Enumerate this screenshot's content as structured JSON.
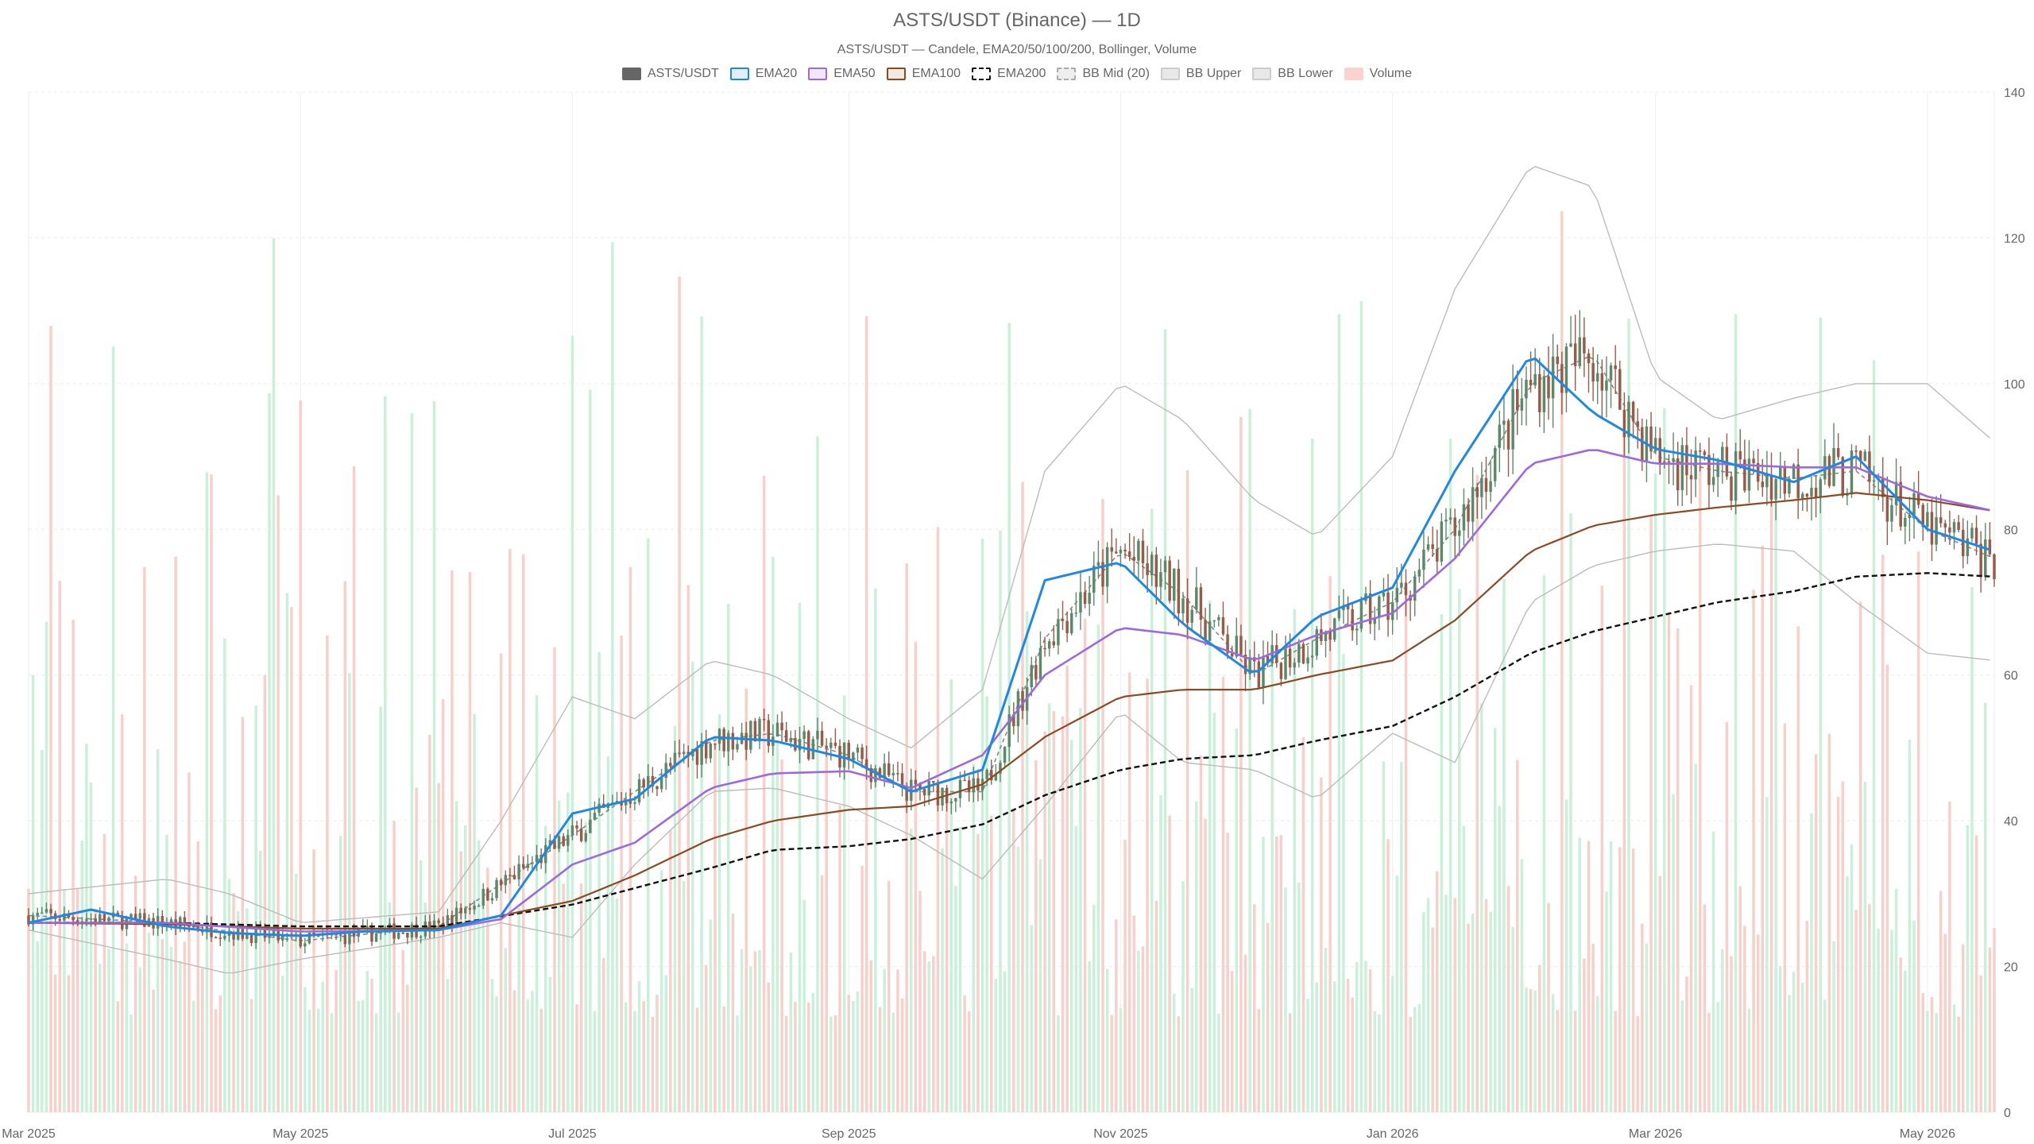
{
  "chart_data": {
    "type": "candlestick",
    "title": "ASTS/USDT (Binance) — 1D",
    "subtitle": "ASTS/USDT — Candele, EMA20/50/100/200, Bollinger, Volume",
    "legend_placement": "top-center",
    "grid": true,
    "x_tick_labels": [
      "Mar 2025",
      "May 2025",
      "Jul 2025",
      "Sep 2025",
      "Nov 2025",
      "Jan 2026",
      "Mar 2026",
      "May 2026"
    ],
    "x_range": [
      "2025-03-01",
      "2026-05-16"
    ],
    "y_axis": {
      "position": "right",
      "ylim": [
        0,
        140
      ],
      "ticks": [
        0,
        20,
        40,
        60,
        80,
        100,
        120,
        140
      ]
    },
    "series": [
      {
        "name": "ASTS/USDT",
        "kind": "candles",
        "up_color": "#5a8a6a",
        "down_color": "#9a5a48"
      },
      {
        "name": "EMA20",
        "kind": "line",
        "color": "#1e88e5",
        "points": [
          [
            "2025-03-01",
            26
          ],
          [
            "2025-03-15",
            27.8
          ],
          [
            "2025-04-01",
            25.5
          ],
          [
            "2025-04-15",
            24.6
          ],
          [
            "2025-05-01",
            24.2
          ],
          [
            "2025-05-15",
            24.8
          ],
          [
            "2025-06-01",
            25
          ],
          [
            "2025-06-15",
            27
          ],
          [
            "2025-07-01",
            41
          ],
          [
            "2025-07-15",
            43
          ],
          [
            "2025-08-01",
            51.5
          ],
          [
            "2025-08-15",
            51
          ],
          [
            "2025-09-01",
            48.5
          ],
          [
            "2025-09-15",
            44
          ],
          [
            "2025-10-01",
            47
          ],
          [
            "2025-10-15",
            73
          ],
          [
            "2025-11-01",
            75.5
          ],
          [
            "2025-11-15",
            67
          ],
          [
            "2025-12-01",
            60
          ],
          [
            "2025-12-15",
            68
          ],
          [
            "2026-01-01",
            72
          ],
          [
            "2026-01-15",
            88
          ],
          [
            "2026-02-01",
            104
          ],
          [
            "2026-02-15",
            96
          ],
          [
            "2026-03-01",
            91
          ],
          [
            "2026-03-15",
            89.5
          ],
          [
            "2026-04-01",
            86.5
          ],
          [
            "2026-04-15",
            90
          ],
          [
            "2026-05-01",
            80
          ],
          [
            "2026-05-16",
            77
          ]
        ]
      },
      {
        "name": "EMA50",
        "kind": "line",
        "color": "#9c6ade",
        "points": [
          [
            "2025-03-01",
            26
          ],
          [
            "2025-04-01",
            26
          ],
          [
            "2025-05-01",
            24.8
          ],
          [
            "2025-06-01",
            25
          ],
          [
            "2025-06-15",
            26.5
          ],
          [
            "2025-07-01",
            34
          ],
          [
            "2025-07-15",
            37
          ],
          [
            "2025-08-01",
            44.5
          ],
          [
            "2025-08-15",
            46.5
          ],
          [
            "2025-09-01",
            46.8
          ],
          [
            "2025-09-15",
            44.5
          ],
          [
            "2025-10-01",
            49
          ],
          [
            "2025-10-15",
            60
          ],
          [
            "2025-11-01",
            66.5
          ],
          [
            "2025-11-15",
            65.5
          ],
          [
            "2025-12-01",
            62
          ],
          [
            "2025-12-15",
            65.5
          ],
          [
            "2026-01-01",
            68.5
          ],
          [
            "2026-01-15",
            76
          ],
          [
            "2026-02-01",
            89
          ],
          [
            "2026-02-15",
            91
          ],
          [
            "2026-03-01",
            89
          ],
          [
            "2026-03-15",
            89
          ],
          [
            "2026-04-01",
            88.5
          ],
          [
            "2026-04-15",
            88.5
          ],
          [
            "2026-05-01",
            84.5
          ],
          [
            "2026-05-16",
            82.5
          ]
        ]
      },
      {
        "name": "EMA100",
        "kind": "line",
        "color": "#8b4a24",
        "points": [
          [
            "2025-03-01",
            26
          ],
          [
            "2025-04-01",
            25.8
          ],
          [
            "2025-05-01",
            25.2
          ],
          [
            "2025-06-01",
            25.2
          ],
          [
            "2025-07-01",
            29
          ],
          [
            "2025-07-15",
            32.5
          ],
          [
            "2025-08-01",
            37.5
          ],
          [
            "2025-08-15",
            40
          ],
          [
            "2025-09-01",
            41.5
          ],
          [
            "2025-09-15",
            42
          ],
          [
            "2025-10-01",
            45
          ],
          [
            "2025-10-15",
            51.5
          ],
          [
            "2025-11-01",
            57
          ],
          [
            "2025-11-15",
            58
          ],
          [
            "2025-12-01",
            58
          ],
          [
            "2025-12-15",
            60
          ],
          [
            "2026-01-01",
            62
          ],
          [
            "2026-01-15",
            67.5
          ],
          [
            "2026-02-01",
            77
          ],
          [
            "2026-02-15",
            80.5
          ],
          [
            "2026-03-01",
            82
          ],
          [
            "2026-03-15",
            83
          ],
          [
            "2026-04-01",
            84
          ],
          [
            "2026-04-15",
            85
          ],
          [
            "2026-05-01",
            84
          ],
          [
            "2026-05-16",
            82.5
          ]
        ]
      },
      {
        "name": "EMA200",
        "kind": "line",
        "color": "#111111",
        "dashed": true,
        "points": [
          [
            "2025-03-01",
            26
          ],
          [
            "2025-04-01",
            26
          ],
          [
            "2025-05-01",
            25.5
          ],
          [
            "2025-06-01",
            25.5
          ],
          [
            "2025-07-01",
            28.5
          ],
          [
            "2025-08-01",
            33.5
          ],
          [
            "2025-08-15",
            36
          ],
          [
            "2025-09-01",
            36.5
          ],
          [
            "2025-09-15",
            37.5
          ],
          [
            "2025-10-01",
            39.5
          ],
          [
            "2025-10-15",
            43.5
          ],
          [
            "2025-11-01",
            47
          ],
          [
            "2025-11-15",
            48.5
          ],
          [
            "2025-12-01",
            49
          ],
          [
            "2025-12-15",
            51
          ],
          [
            "2026-01-01",
            53
          ],
          [
            "2026-01-15",
            57
          ],
          [
            "2026-02-01",
            63
          ],
          [
            "2026-02-15",
            66
          ],
          [
            "2026-03-01",
            68
          ],
          [
            "2026-03-15",
            70
          ],
          [
            "2026-04-01",
            71.5
          ],
          [
            "2026-04-15",
            73.5
          ],
          [
            "2026-05-01",
            74
          ],
          [
            "2026-05-16",
            73.5
          ]
        ]
      },
      {
        "name": "BB Mid (20)",
        "kind": "line",
        "color": "#888888",
        "dashed": true,
        "points": [
          [
            "2025-03-01",
            27
          ],
          [
            "2025-04-01",
            26
          ],
          [
            "2025-05-01",
            23.5
          ],
          [
            "2025-06-01",
            25.5
          ],
          [
            "2025-07-01",
            38
          ],
          [
            "2025-07-15",
            44
          ],
          [
            "2025-08-01",
            51
          ],
          [
            "2025-08-15",
            52
          ],
          [
            "2025-09-01",
            49
          ],
          [
            "2025-09-15",
            44
          ],
          [
            "2025-10-01",
            44
          ],
          [
            "2025-10-15",
            65
          ],
          [
            "2025-11-01",
            77
          ],
          [
            "2025-11-15",
            71
          ],
          [
            "2025-12-01",
            60
          ],
          [
            "2025-12-15",
            65
          ],
          [
            "2026-01-01",
            70
          ],
          [
            "2026-01-15",
            80
          ],
          [
            "2026-02-01",
            100
          ],
          [
            "2026-02-15",
            104
          ],
          [
            "2026-03-01",
            90
          ],
          [
            "2026-03-15",
            88
          ],
          [
            "2026-04-01",
            87
          ],
          [
            "2026-04-15",
            88
          ],
          [
            "2026-05-01",
            80
          ],
          [
            "2026-05-16",
            76
          ]
        ]
      },
      {
        "name": "BB Upper",
        "kind": "line",
        "color": "#bbbbbb",
        "points": [
          [
            "2025-03-01",
            30
          ],
          [
            "2025-04-01",
            32
          ],
          [
            "2025-04-15",
            30
          ],
          [
            "2025-05-01",
            26
          ],
          [
            "2025-06-01",
            27.5
          ],
          [
            "2025-06-15",
            40
          ],
          [
            "2025-07-01",
            57
          ],
          [
            "2025-07-15",
            54
          ],
          [
            "2025-08-01",
            62
          ],
          [
            "2025-08-15",
            60
          ],
          [
            "2025-09-01",
            54
          ],
          [
            "2025-09-15",
            50
          ],
          [
            "2025-10-01",
            58
          ],
          [
            "2025-10-15",
            88
          ],
          [
            "2025-11-01",
            100
          ],
          [
            "2025-11-15",
            95
          ],
          [
            "2025-12-01",
            84
          ],
          [
            "2025-12-15",
            79
          ],
          [
            "2026-01-01",
            90
          ],
          [
            "2026-01-15",
            113
          ],
          [
            "2026-02-01",
            130
          ],
          [
            "2026-02-15",
            127
          ],
          [
            "2026-03-01",
            101
          ],
          [
            "2026-03-15",
            95
          ],
          [
            "2026-04-01",
            98
          ],
          [
            "2026-04-15",
            100
          ],
          [
            "2026-05-01",
            100
          ],
          [
            "2026-05-16",
            92
          ]
        ]
      },
      {
        "name": "BB Lower",
        "kind": "line",
        "color": "#bbbbbb",
        "points": [
          [
            "2025-03-01",
            25
          ],
          [
            "2025-04-01",
            21
          ],
          [
            "2025-04-15",
            19
          ],
          [
            "2025-05-01",
            21
          ],
          [
            "2025-06-01",
            24
          ],
          [
            "2025-06-15",
            26
          ],
          [
            "2025-07-01",
            24
          ],
          [
            "2025-07-15",
            34
          ],
          [
            "2025-08-01",
            44
          ],
          [
            "2025-08-15",
            44.5
          ],
          [
            "2025-09-01",
            42
          ],
          [
            "2025-09-15",
            38
          ],
          [
            "2025-10-01",
            32
          ],
          [
            "2025-10-15",
            42
          ],
          [
            "2025-11-01",
            55
          ],
          [
            "2025-11-15",
            48
          ],
          [
            "2025-12-01",
            47
          ],
          [
            "2025-12-15",
            43
          ],
          [
            "2026-01-01",
            52
          ],
          [
            "2026-01-15",
            48
          ],
          [
            "2026-02-01",
            70
          ],
          [
            "2026-02-15",
            75
          ],
          [
            "2026-03-01",
            77
          ],
          [
            "2026-03-15",
            78
          ],
          [
            "2026-04-01",
            77
          ],
          [
            "2026-04-15",
            70
          ],
          [
            "2026-05-01",
            63
          ],
          [
            "2026-05-16",
            62
          ]
        ]
      },
      {
        "name": "Volume",
        "kind": "bars",
        "up_color": "#c9f0d9",
        "down_color": "#f9cfc9"
      }
    ],
    "legend": [
      {
        "label": "ASTS/USDT",
        "fill": "#666666",
        "stroke": "#666666",
        "dashed": false
      },
      {
        "label": "EMA20",
        "fill": "#e3f0fb",
        "stroke": "#1e88e5",
        "dashed": false
      },
      {
        "label": "EMA50",
        "fill": "#f0e8fa",
        "stroke": "#9c6ade",
        "dashed": false
      },
      {
        "label": "EMA100",
        "fill": "#f3e9e2",
        "stroke": "#8b4a24",
        "dashed": false
      },
      {
        "label": "EMA200",
        "fill": "#ffffff",
        "stroke": "#111111",
        "dashed": true
      },
      {
        "label": "BB Mid (20)",
        "fill": "#eeeeee",
        "stroke": "#aaaaaa",
        "dashed": true
      },
      {
        "label": "BB Upper",
        "fill": "#e8e8e8",
        "stroke": "#cccccc",
        "dashed": false
      },
      {
        "label": "BB Lower",
        "fill": "#e8e8e8",
        "stroke": "#cccccc",
        "dashed": false
      },
      {
        "label": "Volume",
        "fill": "#fbd3ce",
        "stroke": "#fbd3ce",
        "dashed": false
      }
    ]
  }
}
